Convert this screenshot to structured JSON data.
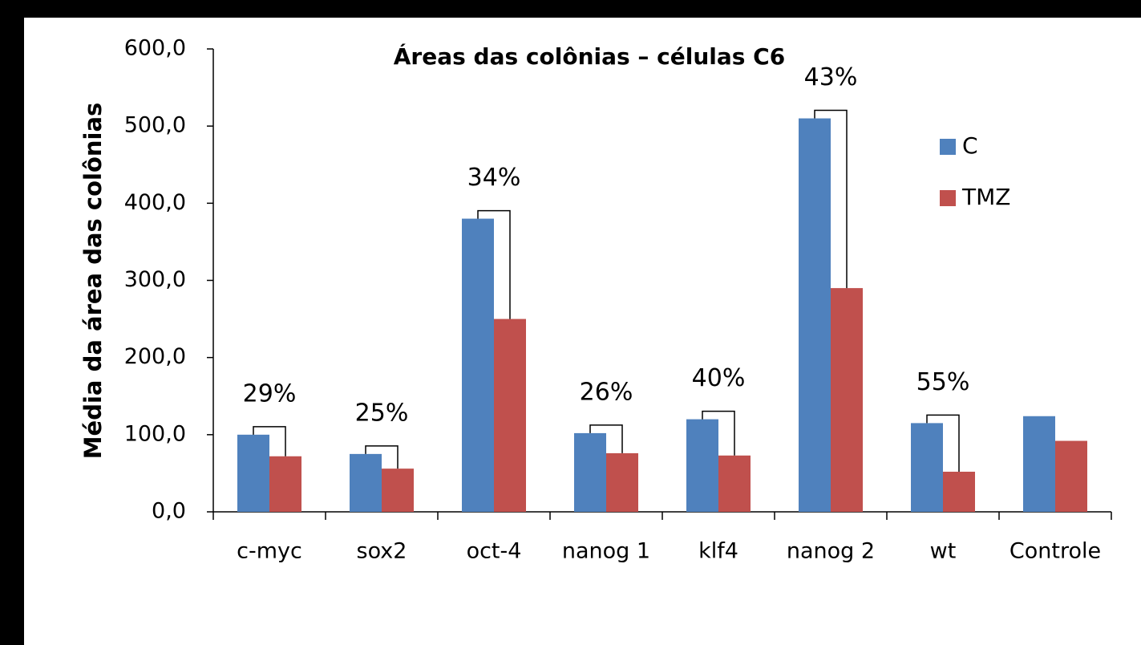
{
  "chart_data": {
    "type": "bar",
    "title": "Áreas das colônias – células C6",
    "y_label": "Média da área das colônias",
    "categories": [
      "c-myc",
      "sox2",
      "oct-4",
      "nanog 1",
      "klf4",
      "nanog 2",
      "wt",
      "Controle"
    ],
    "series": [
      {
        "name": "C",
        "color": "#4f81bd",
        "values": [
          100,
          75,
          380,
          102,
          120,
          510,
          115,
          124
        ]
      },
      {
        "name": "TMZ",
        "color": "#c0504d",
        "values": [
          72,
          56,
          250,
          76,
          73,
          290,
          52,
          92
        ]
      }
    ],
    "annotations": [
      "29%",
      "25%",
      "34%",
      "26%",
      "40%",
      "43%",
      "55%",
      null
    ],
    "ylim": [
      0,
      600
    ],
    "yticks": [
      {
        "value": 0,
        "label": "0,0"
      },
      {
        "value": 100,
        "label": "100,0"
      },
      {
        "value": 200,
        "label": "200,0"
      },
      {
        "value": 300,
        "label": "300,0"
      },
      {
        "value": 400,
        "label": "400,0"
      },
      {
        "value": 500,
        "label": "500,0"
      },
      {
        "value": 600,
        "label": "600,0"
      }
    ],
    "legend": "right"
  }
}
